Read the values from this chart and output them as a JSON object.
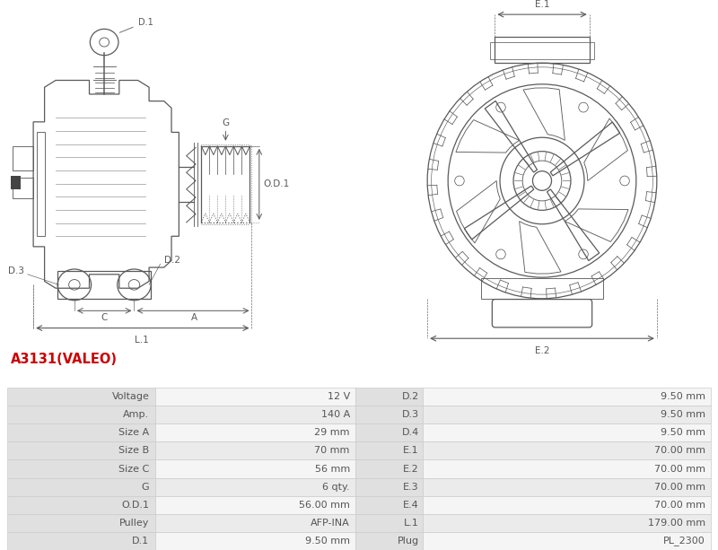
{
  "title": "A3131(VALEO)",
  "title_color": "#cc0000",
  "table_rows": [
    [
      "Voltage",
      "12 V",
      "D.2",
      "9.50 mm"
    ],
    [
      "Amp.",
      "140 A",
      "D.3",
      "9.50 mm"
    ],
    [
      "Size A",
      "29 mm",
      "D.4",
      "9.50 mm"
    ],
    [
      "Size B",
      "70 mm",
      "E.1",
      "70.00 mm"
    ],
    [
      "Size C",
      "56 mm",
      "E.2",
      "70.00 mm"
    ],
    [
      "G",
      "6 qty.",
      "E.3",
      "70.00 mm"
    ],
    [
      "O.D.1",
      "56.00 mm",
      "E.4",
      "70.00 mm"
    ],
    [
      "Pulley",
      "AFP-INA",
      "L.1",
      "179.00 mm"
    ],
    [
      "D.1",
      "9.50 mm",
      "Plug",
      "PL_2300"
    ]
  ],
  "bg_color": "#ffffff",
  "table_label_bg": "#e0e0e0",
  "table_val_bg1": "#f5f5f5",
  "table_val_bg2": "#ebebeb",
  "table_border_color": "#cccccc",
  "lc": "#5a5a5a",
  "lw": 0.9
}
